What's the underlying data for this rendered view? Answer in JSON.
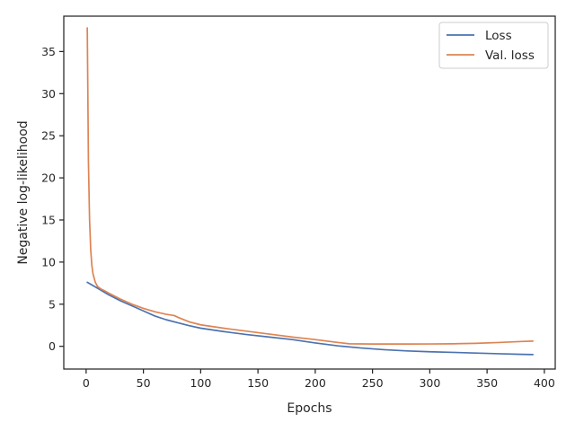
{
  "chart_data": {
    "type": "line",
    "xlabel": "Epochs",
    "ylabel": "Negative log-likelihood",
    "xlim": [
      -19.5,
      409.5
    ],
    "ylim": [
      -2.7,
      39.2
    ],
    "xticks": [
      0,
      50,
      100,
      150,
      200,
      250,
      300,
      350,
      400
    ],
    "yticks": [
      0,
      5,
      10,
      15,
      20,
      25,
      30,
      35
    ],
    "grid": false,
    "legend_position": "top-right",
    "series": [
      {
        "name": "Loss",
        "color": "#4c72b0",
        "x": [
          1,
          10,
          20,
          30,
          40,
          50,
          60,
          70,
          80,
          90,
          100,
          120,
          140,
          160,
          180,
          200,
          220,
          240,
          260,
          280,
          300,
          320,
          340,
          360,
          380,
          390
        ],
        "y": [
          7.6,
          6.9,
          6.1,
          5.4,
          4.8,
          4.2,
          3.6,
          3.15,
          2.8,
          2.45,
          2.15,
          1.75,
          1.4,
          1.1,
          0.8,
          0.4,
          0.05,
          -0.2,
          -0.4,
          -0.55,
          -0.65,
          -0.72,
          -0.8,
          -0.88,
          -0.95,
          -0.98
        ]
      },
      {
        "name": "Val. loss",
        "color": "#dd8452",
        "x": [
          1,
          1.5,
          2,
          3,
          4,
          5,
          6,
          8,
          10,
          13,
          16,
          20,
          30,
          40,
          50,
          60,
          70,
          77,
          80,
          90,
          100,
          120,
          140,
          160,
          180,
          200,
          220,
          230,
          250,
          280,
          300,
          320,
          340,
          360,
          380,
          390
        ],
        "y": [
          37.8,
          30.0,
          22.0,
          15.0,
          11.5,
          9.6,
          8.6,
          7.6,
          7.1,
          6.8,
          6.6,
          6.3,
          5.6,
          5.0,
          4.5,
          4.1,
          3.8,
          3.65,
          3.45,
          2.9,
          2.55,
          2.15,
          1.8,
          1.45,
          1.1,
          0.8,
          0.45,
          0.3,
          0.27,
          0.27,
          0.28,
          0.3,
          0.35,
          0.45,
          0.57,
          0.62
        ]
      }
    ]
  }
}
